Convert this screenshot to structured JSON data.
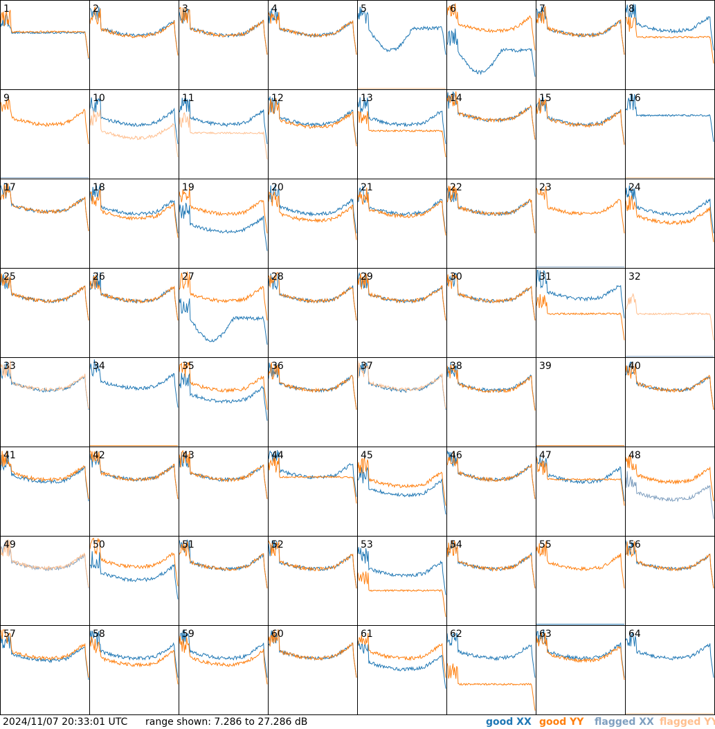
{
  "footer": {
    "timestamp": "2024/11/07 20:33:01 UTC",
    "range_text": "range shown: 7.286 to 27.286 dB"
  },
  "legend": [
    {
      "label": "good XX",
      "color": "#1f77b4"
    },
    {
      "label": "good YY",
      "color": "#ff7f0e"
    },
    {
      "label": "flagged XX",
      "color": "#7f9fbf"
    },
    {
      "label": "flagged YY",
      "color": "#ffbf8f"
    }
  ],
  "chart_data": {
    "type": "line",
    "layout": "small-multiples 8x8",
    "ylim": [
      7.286,
      27.286
    ],
    "units": "dB",
    "panels": [
      {
        "id": "1",
        "xx": "good",
        "yy": "good",
        "xx_shape": "flat",
        "yy_shape": "flat",
        "xx_level": 20,
        "yy_level": 20.2
      },
      {
        "id": "2",
        "xx": "good",
        "yy": "good",
        "xx_shape": "bowl",
        "yy_shape": "bowl",
        "xx_level": 21,
        "yy_level": 20.8
      },
      {
        "id": "3",
        "xx": "good",
        "yy": "good",
        "xx_shape": "bowl",
        "yy_shape": "bowl",
        "xx_level": 21,
        "yy_level": 21
      },
      {
        "id": "4",
        "xx": "good",
        "yy": "good",
        "xx_shape": "bowl",
        "yy_shape": "bowl",
        "xx_level": 21,
        "yy_level": 21
      },
      {
        "id": "5",
        "xx": "good",
        "yy": "flagged",
        "xx_shape": "deepdip",
        "yy_shape": "dead",
        "xx_level": 21,
        "yy_level": 7.3
      },
      {
        "id": "6",
        "xx": "good",
        "yy": "good",
        "xx_shape": "deepdip",
        "yy_shape": "bowl",
        "xx_level": 16,
        "yy_level": 22
      },
      {
        "id": "7",
        "xx": "good",
        "yy": "good",
        "xx_shape": "bowl",
        "yy_shape": "bowl",
        "xx_level": 21,
        "yy_level": 21
      },
      {
        "id": "8",
        "xx": "good",
        "yy": "good",
        "xx_shape": "bowl",
        "yy_shape": "flat",
        "xx_level": 22,
        "yy_level": 19
      },
      {
        "id": "9",
        "xx": "flagged",
        "yy": "good",
        "xx_shape": "dead",
        "yy_shape": "bowl",
        "xx_level": 7.3,
        "yy_level": 21
      },
      {
        "id": "10",
        "xx": "good",
        "yy": "flagged",
        "xx_shape": "bowl",
        "yy_shape": "bowl",
        "xx_level": 21,
        "yy_level": 18
      },
      {
        "id": "11",
        "xx": "good",
        "yy": "flagged",
        "xx_shape": "bowl",
        "yy_shape": "flat",
        "xx_level": 21,
        "yy_level": 17.5
      },
      {
        "id": "12",
        "xx": "good",
        "yy": "good",
        "xx_shape": "bowl",
        "yy_shape": "bowl",
        "xx_level": 21,
        "yy_level": 20.5
      },
      {
        "id": "13",
        "xx": "good",
        "yy": "good",
        "xx_shape": "bowl",
        "yy_shape": "flat",
        "xx_level": 21,
        "yy_level": 18
      },
      {
        "id": "14",
        "xx": "good",
        "yy": "good",
        "xx_shape": "bowl",
        "yy_shape": "bowl",
        "xx_level": 22,
        "yy_level": 22
      },
      {
        "id": "15",
        "xx": "good",
        "yy": "good",
        "xx_shape": "bowl",
        "yy_shape": "bowl",
        "xx_level": 21,
        "yy_level": 20.8
      },
      {
        "id": "16",
        "xx": "good",
        "yy": "flagged",
        "xx_shape": "flat",
        "yy_shape": "dead",
        "xx_level": 21.5,
        "yy_level": 7.3
      },
      {
        "id": "17",
        "xx": "good",
        "yy": "good",
        "xx_shape": "bowl",
        "yy_shape": "bowl",
        "xx_level": 21.5,
        "yy_level": 21.5
      },
      {
        "id": "18",
        "xx": "good",
        "yy": "good",
        "xx_shape": "bowl",
        "yy_shape": "bowl",
        "xx_level": 21,
        "yy_level": 20
      },
      {
        "id": "19",
        "xx": "good",
        "yy": "good",
        "xx_shape": "bowl",
        "yy_shape": "bowl",
        "xx_level": 17,
        "yy_level": 21
      },
      {
        "id": "20",
        "xx": "good",
        "yy": "good",
        "xx_shape": "bowl",
        "yy_shape": "bowl",
        "xx_level": 21,
        "yy_level": 19.5
      },
      {
        "id": "21",
        "xx": "good",
        "yy": "good",
        "xx_shape": "bowl",
        "yy_shape": "bowl",
        "xx_level": 21,
        "yy_level": 20.5
      },
      {
        "id": "22",
        "xx": "good",
        "yy": "good",
        "xx_shape": "bowl",
        "yy_shape": "bowl",
        "xx_level": 21,
        "yy_level": 21
      },
      {
        "id": "23",
        "xx": "flagged",
        "yy": "good",
        "xx_shape": "dead",
        "yy_shape": "bowl",
        "xx_level": 7.3,
        "yy_level": 21
      },
      {
        "id": "24",
        "xx": "good",
        "yy": "good",
        "xx_shape": "bowl",
        "yy_shape": "bowl",
        "xx_level": 21,
        "yy_level": 19
      },
      {
        "id": "25",
        "xx": "good",
        "yy": "good",
        "xx_shape": "bowl",
        "yy_shape": "bowl",
        "xx_level": 21.5,
        "yy_level": 21.5
      },
      {
        "id": "26",
        "xx": "good",
        "yy": "good",
        "xx_shape": "bowl",
        "yy_shape": "bowl",
        "xx_level": 21.5,
        "yy_level": 21.5
      },
      {
        "id": "27",
        "xx": "good",
        "yy": "good",
        "xx_shape": "deepdip",
        "yy_shape": "bowl",
        "xx_level": 16,
        "yy_level": 21.5
      },
      {
        "id": "28",
        "xx": "good",
        "yy": "good",
        "xx_shape": "bowl",
        "yy_shape": "bowl",
        "xx_level": 21.5,
        "yy_level": 21.5
      },
      {
        "id": "29",
        "xx": "good",
        "yy": "good",
        "xx_shape": "bowl",
        "yy_shape": "bowl",
        "xx_level": 21.5,
        "yy_level": 21.5
      },
      {
        "id": "30",
        "xx": "good",
        "yy": "good",
        "xx_shape": "bowl",
        "yy_shape": "bowl",
        "xx_level": 21.5,
        "yy_level": 21.5
      },
      {
        "id": "31",
        "xx": "good",
        "yy": "good",
        "xx_shape": "bowl",
        "yy_shape": "flat",
        "xx_level": 22,
        "yy_level": 17
      },
      {
        "id": "32",
        "xx": "flagged",
        "yy": "flagged",
        "xx_shape": "dead",
        "yy_shape": "flat",
        "xx_level": 7.3,
        "yy_level": 17
      },
      {
        "id": "33",
        "xx": "good",
        "yy": "flagged",
        "xx_shape": "bowl",
        "yy_shape": "bowl",
        "xx_level": 21.5,
        "yy_level": 21.7
      },
      {
        "id": "34",
        "xx": "good",
        "yy": "good",
        "xx_shape": "bowl",
        "yy_shape": "dead",
        "xx_level": 22,
        "yy_level": 7.3
      },
      {
        "id": "35",
        "xx": "good",
        "yy": "good",
        "xx_shape": "bowl",
        "yy_shape": "bowl",
        "xx_level": 19,
        "yy_level": 21.5
      },
      {
        "id": "36",
        "xx": "good",
        "yy": "good",
        "xx_shape": "bowl",
        "yy_shape": "bowl",
        "xx_level": 21.5,
        "yy_level": 21.5
      },
      {
        "id": "37",
        "xx": "good",
        "yy": "flagged",
        "xx_shape": "bowl",
        "yy_shape": "bowl",
        "xx_level": 21.5,
        "yy_level": 21.7
      },
      {
        "id": "38",
        "xx": "good",
        "yy": "good",
        "xx_shape": "bowl",
        "yy_shape": "bowl",
        "xx_level": 21.5,
        "yy_level": 21.3
      },
      {
        "id": "39",
        "xx": "good",
        "yy": "good",
        "xx_shape": "dead",
        "yy_shape": "dead",
        "xx_level": 7.3,
        "yy_level": 7.3
      },
      {
        "id": "40",
        "xx": "good",
        "yy": "good",
        "xx_shape": "bowl",
        "yy_shape": "bowl",
        "xx_level": 21.5,
        "yy_level": 21.5
      },
      {
        "id": "41",
        "xx": "good",
        "yy": "good",
        "xx_shape": "bowl",
        "yy_shape": "bowl",
        "xx_level": 21,
        "yy_level": 21.5
      },
      {
        "id": "42",
        "xx": "good",
        "yy": "good",
        "xx_shape": "bowl",
        "yy_shape": "bowl",
        "xx_level": 21.5,
        "yy_level": 21.5
      },
      {
        "id": "43",
        "xx": "good",
        "yy": "good",
        "xx_shape": "bowl",
        "yy_shape": "bowl",
        "xx_level": 21.5,
        "yy_level": 21.5
      },
      {
        "id": "44",
        "xx": "good",
        "yy": "good",
        "xx_shape": "bowl",
        "yy_shape": "flat",
        "xx_level": 22,
        "yy_level": 20.5
      },
      {
        "id": "45",
        "xx": "good",
        "yy": "good",
        "xx_shape": "bowl",
        "yy_shape": "bowl",
        "xx_level": 18,
        "yy_level": 20
      },
      {
        "id": "46",
        "xx": "good",
        "yy": "good",
        "xx_shape": "bowl",
        "yy_shape": "bowl",
        "xx_level": 21.5,
        "yy_level": 21.5
      },
      {
        "id": "47",
        "xx": "good",
        "yy": "good",
        "xx_shape": "bowl",
        "yy_shape": "flat",
        "xx_level": 21,
        "yy_level": 20
      },
      {
        "id": "48",
        "xx": "flagged",
        "yy": "good",
        "xx_shape": "bowl",
        "yy_shape": "bowl",
        "xx_level": 17,
        "yy_level": 21
      },
      {
        "id": "49",
        "xx": "flagged",
        "yy": "flagged",
        "xx_shape": "bowl",
        "yy_shape": "bowl",
        "xx_level": 21.5,
        "yy_level": 21.7
      },
      {
        "id": "50",
        "xx": "good",
        "yy": "good",
        "xx_shape": "bowl",
        "yy_shape": "bowl",
        "xx_level": 19,
        "yy_level": 22
      },
      {
        "id": "51",
        "xx": "good",
        "yy": "good",
        "xx_shape": "bowl",
        "yy_shape": "bowl",
        "xx_level": 21.5,
        "yy_level": 21.5
      },
      {
        "id": "52",
        "xx": "good",
        "yy": "good",
        "xx_shape": "bowl",
        "yy_shape": "bowl",
        "xx_level": 21.5,
        "yy_level": 21.5
      },
      {
        "id": "53",
        "xx": "good",
        "yy": "good",
        "xx_shape": "bowl",
        "yy_shape": "flat",
        "xx_level": 20,
        "yy_level": 15
      },
      {
        "id": "54",
        "xx": "good",
        "yy": "good",
        "xx_shape": "bowl",
        "yy_shape": "bowl",
        "xx_level": 21.5,
        "yy_level": 21.5
      },
      {
        "id": "55",
        "xx": "good",
        "yy": "good",
        "xx_shape": "dead",
        "yy_shape": "bowl",
        "xx_level": 7.3,
        "yy_level": 21.5
      },
      {
        "id": "56",
        "xx": "good",
        "yy": "good",
        "xx_shape": "bowl",
        "yy_shape": "bowl",
        "xx_level": 21.5,
        "yy_level": 21.5
      },
      {
        "id": "57",
        "xx": "good",
        "yy": "good",
        "xx_shape": "bowl",
        "yy_shape": "bowl",
        "xx_level": 21,
        "yy_level": 21.5
      },
      {
        "id": "58",
        "xx": "good",
        "yy": "good",
        "xx_shape": "bowl",
        "yy_shape": "bowl",
        "xx_level": 21.5,
        "yy_level": 20
      },
      {
        "id": "59",
        "xx": "good",
        "yy": "good",
        "xx_shape": "bowl",
        "yy_shape": "bowl",
        "xx_level": 21.5,
        "yy_level": 20
      },
      {
        "id": "60",
        "xx": "good",
        "yy": "good",
        "xx_shape": "bowl",
        "yy_shape": "bowl",
        "xx_level": 21.5,
        "yy_level": 21.5
      },
      {
        "id": "61",
        "xx": "good",
        "yy": "good",
        "xx_shape": "bowl",
        "yy_shape": "bowl",
        "xx_level": 19,
        "yy_level": 21.5
      },
      {
        "id": "62",
        "xx": "good",
        "yy": "good",
        "xx_shape": "bowl",
        "yy_shape": "flat",
        "xx_level": 21.5,
        "yy_level": 14
      },
      {
        "id": "63",
        "xx": "good",
        "yy": "good",
        "xx_shape": "bowl",
        "yy_shape": "bowl",
        "xx_level": 21.5,
        "yy_level": 21
      },
      {
        "id": "64",
        "xx": "good",
        "yy": "flagged",
        "xx_shape": "bowl",
        "yy_shape": "dead",
        "xx_level": 21.5,
        "yy_level": 7.3
      }
    ]
  }
}
